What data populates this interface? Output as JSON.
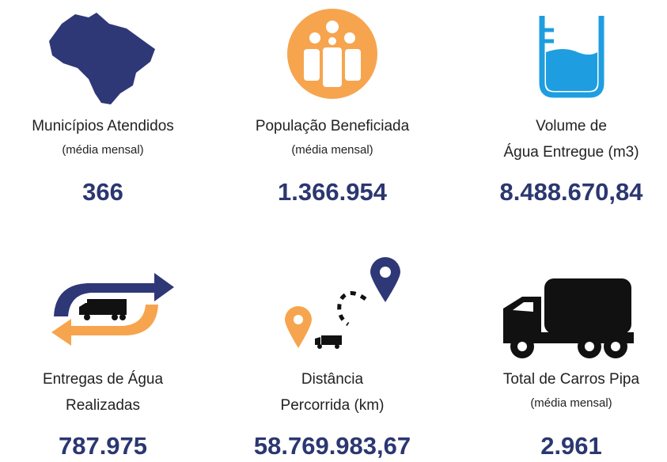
{
  "cards": [
    {
      "title": [
        "Municípios Atendidos"
      ],
      "subtitle": "(média mensal)",
      "value": "366"
    },
    {
      "title": [
        "População Beneficiada"
      ],
      "subtitle": "(média mensal)",
      "value": "1.366.954"
    },
    {
      "title": [
        "Volume de",
        "Água Entregue (m3)"
      ],
      "value": "8.488.670,84"
    },
    {
      "title": [
        "Entregas de Água",
        "Realizadas"
      ],
      "value": "787.975"
    },
    {
      "title": [
        "Distância",
        "Percorrida (km)"
      ],
      "value": "58.769.983,67"
    },
    {
      "title": [
        "Total de Carros Pipa"
      ],
      "subtitle": "(média mensal)",
      "value": "2.961"
    }
  ]
}
